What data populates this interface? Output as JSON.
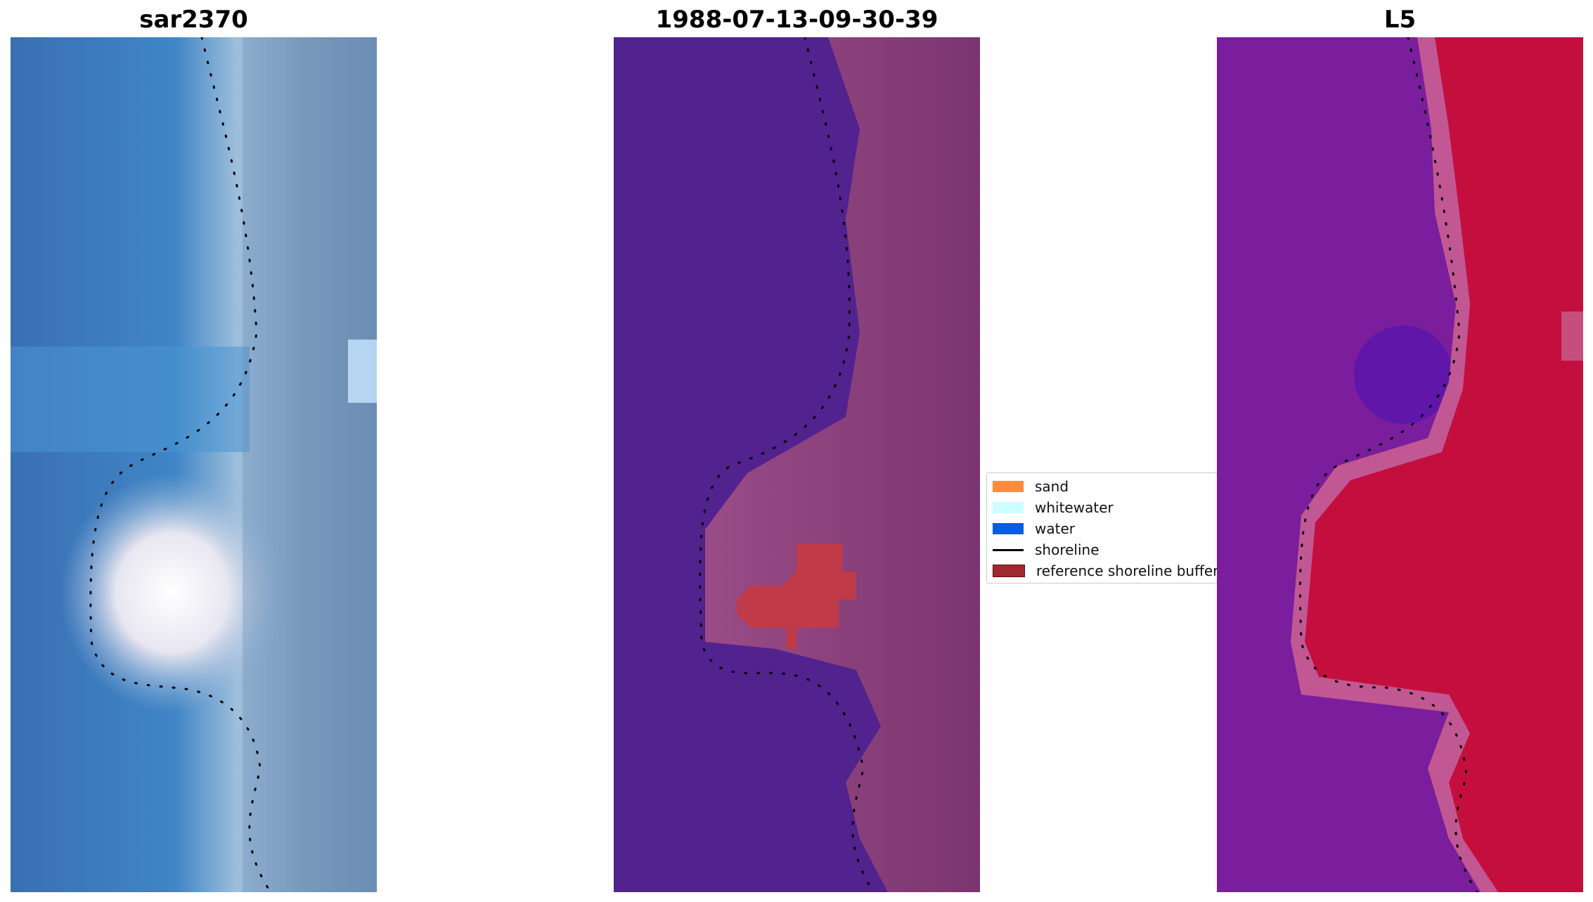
{
  "panels": [
    {
      "id": "p1",
      "title": "sar2370",
      "bg": "#3a6fb3",
      "tone": "rgb"
    },
    {
      "id": "p2",
      "title": "1988-07-13-09-30-39",
      "bg": "#52228f",
      "tone": "classified"
    },
    {
      "id": "p3",
      "title": "L5",
      "bg": "#7a1e9e",
      "tone": "index"
    }
  ],
  "legend": {
    "items": [
      {
        "label": "sand",
        "color": "#ff8c3a",
        "kind": "patch"
      },
      {
        "label": "whitewater",
        "color": "#ccffff",
        "kind": "patch"
      },
      {
        "label": "water",
        "color": "#0a5ce6",
        "kind": "patch"
      },
      {
        "label": "shoreline",
        "color": "#000000",
        "kind": "line"
      },
      {
        "label": "reference shoreline buffer",
        "color": "#a0282e",
        "kind": "patch"
      }
    ]
  },
  "colors": {
    "water_blue": "#3a6fb3",
    "surf_light": "#a9c4dc",
    "classified_water": "#52228f",
    "classified_land": "#8a3f7d",
    "reference_buffer": "#c03a48",
    "index_water": "#7a1e9e",
    "index_land": "#c0103a",
    "shoreline_dots": "#000000"
  }
}
